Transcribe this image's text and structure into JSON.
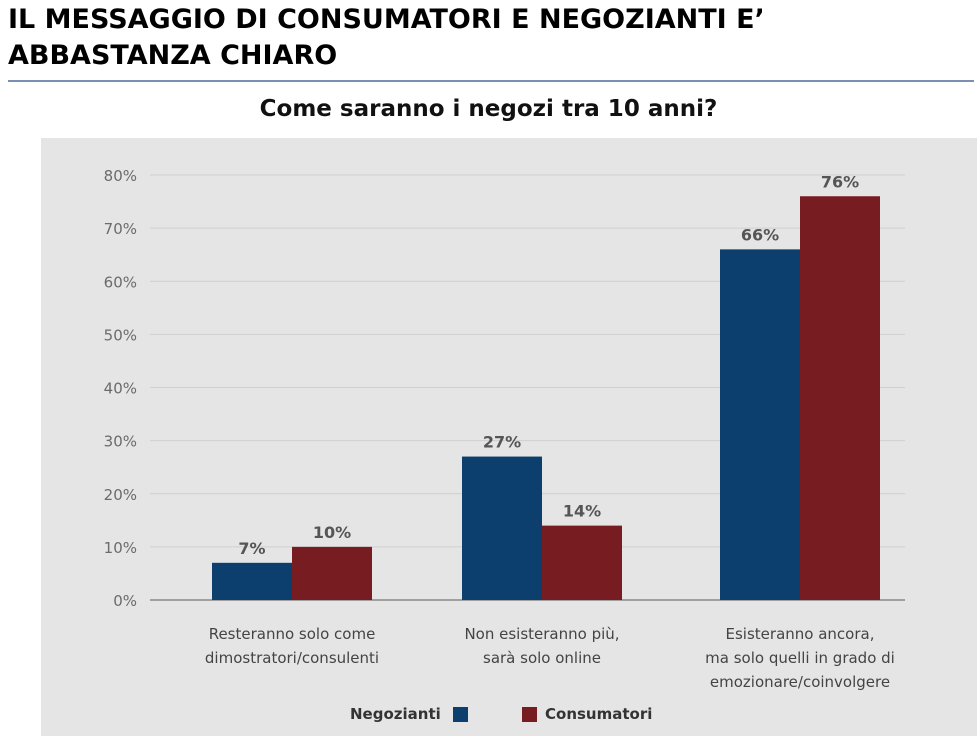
{
  "headline": {
    "line1": "IL MESSAGGIO DI CONSUMATORI E NEGOZIANTI E’",
    "line2": "ABBASTANZA CHIARO"
  },
  "chart_data": {
    "type": "bar",
    "title": "Come saranno i negozi tra 10 anni?",
    "categories": [
      [
        "Resteranno solo come",
        "dimostratori/consulenti"
      ],
      [
        "Non esisteranno più,",
        "sarà solo online"
      ],
      [
        "Esisteranno ancora,",
        "ma solo quelli in grado di",
        "emozionare/coinvolgere"
      ]
    ],
    "series": [
      {
        "name": "Negozianti",
        "color": "#0d3f6e",
        "values": [
          7,
          27,
          66
        ],
        "labels": [
          "7%",
          "27%",
          "66%"
        ]
      },
      {
        "name": "Consumatori",
        "color": "#771d22",
        "values": [
          10,
          14,
          76
        ],
        "labels": [
          "10%",
          "14%",
          "76%"
        ]
      }
    ],
    "ylim": [
      0,
      80
    ],
    "yticks": [
      0,
      10,
      20,
      30,
      40,
      50,
      60,
      70,
      80
    ],
    "ytick_labels": [
      "0%",
      "10%",
      "20%",
      "30%",
      "40%",
      "50%",
      "60%",
      "70%",
      "80%"
    ],
    "grid": true,
    "legend_position": "bottom"
  }
}
